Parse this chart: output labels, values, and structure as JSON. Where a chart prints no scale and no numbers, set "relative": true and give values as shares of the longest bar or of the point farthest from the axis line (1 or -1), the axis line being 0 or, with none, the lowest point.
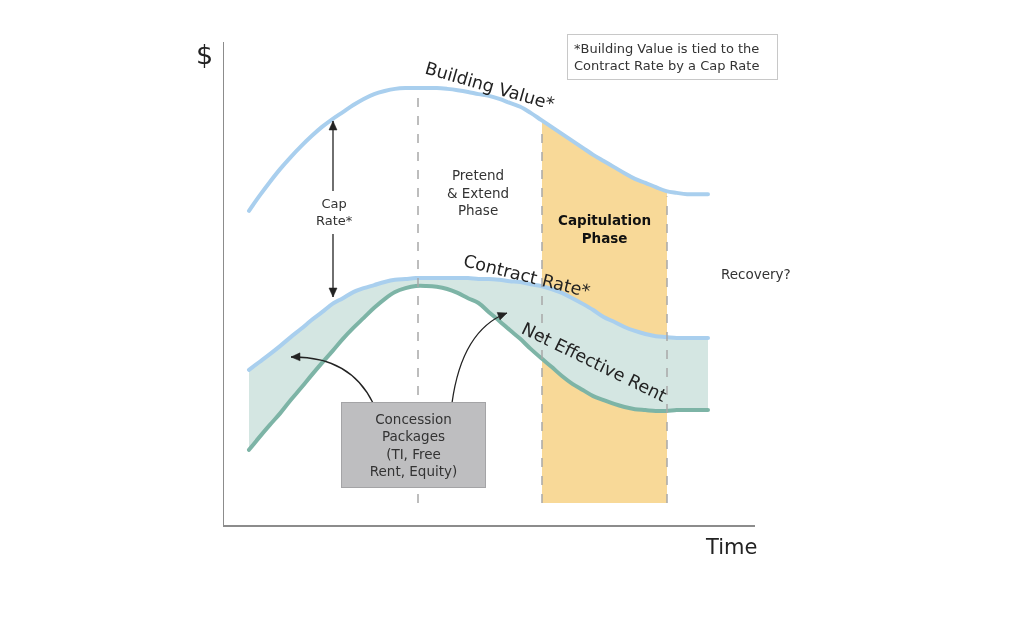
{
  "chart_data": {
    "type": "line",
    "relative": true,
    "xlabel": "Time",
    "ylabel": "$",
    "legend": false,
    "categories": [
      null,
      null,
      null,
      null,
      null,
      null,
      null,
      null,
      null,
      null,
      null,
      null,
      null,
      null,
      null,
      null,
      null,
      null,
      null,
      null,
      null,
      null,
      null,
      null,
      null,
      null,
      null,
      null,
      null,
      null,
      null,
      null,
      null,
      null,
      null,
      null,
      null,
      null,
      null,
      null,
      null,
      null,
      null,
      null,
      null
    ],
    "series": [
      {
        "name": "Building Value*",
        "color": "#a9cfee",
        "values": [
          0.719,
          0.753,
          0.785,
          0.815,
          0.842,
          0.867,
          0.89,
          0.911,
          0.929,
          0.945,
          0.961,
          0.975,
          0.986,
          0.993,
          0.998,
          1,
          1,
          1,
          1,
          0.998,
          0.995,
          0.991,
          0.986,
          0.982,
          0.975,
          0.966,
          0.957,
          0.943,
          0.927,
          0.911,
          0.895,
          0.879,
          0.863,
          0.847,
          0.833,
          0.819,
          0.805,
          0.792,
          0.783,
          0.773,
          0.764,
          0.76,
          0.757,
          0.757,
          0.757
        ]
      },
      {
        "name": "Contract Rate*",
        "color": "#a9cfee",
        "values": [
          0.355,
          0.373,
          0.391,
          0.41,
          0.43,
          0.449,
          0.469,
          0.487,
          0.506,
          0.519,
          0.533,
          0.542,
          0.549,
          0.556,
          0.561,
          0.563,
          0.565,
          0.565,
          0.565,
          0.565,
          0.565,
          0.565,
          0.563,
          0.563,
          0.561,
          0.558,
          0.556,
          0.551,
          0.547,
          0.54,
          0.531,
          0.519,
          0.506,
          0.492,
          0.476,
          0.465,
          0.453,
          0.444,
          0.437,
          0.432,
          0.43,
          0.428,
          0.428,
          0.428,
          0.428
        ]
      },
      {
        "name": "Net Effective Rent",
        "color": "#7db4a6",
        "values": [
          0.172,
          0.201,
          0.229,
          0.256,
          0.286,
          0.314,
          0.343,
          0.371,
          0.398,
          0.426,
          0.451,
          0.474,
          0.497,
          0.517,
          0.533,
          0.542,
          0.547,
          0.547,
          0.545,
          0.54,
          0.531,
          0.519,
          0.508,
          0.487,
          0.467,
          0.446,
          0.426,
          0.403,
          0.382,
          0.362,
          0.341,
          0.323,
          0.309,
          0.295,
          0.286,
          0.277,
          0.27,
          0.265,
          0.263,
          0.261,
          0.261,
          0.263,
          0.263,
          0.263,
          0.263
        ],
        "lower": [
          0.172,
          0.201,
          0.229,
          0.256,
          0.286,
          0.314,
          0.343,
          0.371,
          0.398,
          0.426,
          0.451,
          0.474,
          0.497,
          0.517,
          0.533,
          0.542,
          0.547,
          0.547,
          0.545,
          0.54,
          0.531,
          0.519,
          0.508,
          0.487,
          0.467,
          0.446,
          0.426,
          0.403,
          0.382,
          0.362,
          0.341,
          0.323,
          0.309,
          0.295,
          0.286,
          0.277,
          0.27,
          0.265,
          0.263,
          0.261,
          0.261,
          0.263,
          0.263,
          0.263,
          0.263
        ],
        "upper": [
          0.355,
          0.373,
          0.391,
          0.41,
          0.43,
          0.449,
          0.469,
          0.487,
          0.506,
          0.519,
          0.533,
          0.542,
          0.549,
          0.556,
          0.561,
          0.563,
          0.565,
          0.565,
          0.565,
          0.565,
          0.565,
          0.565,
          0.563,
          0.563,
          0.561,
          0.558,
          0.556,
          0.551,
          0.547,
          0.54,
          0.531,
          0.519,
          0.506,
          0.492,
          0.476,
          0.465,
          0.453,
          0.444,
          0.437,
          0.432,
          0.43,
          0.428,
          0.428,
          0.428,
          0.428
        ]
      }
    ],
    "annotations": [
      "*Building Value is tied to the Contract Rate by a Cap Rate",
      "Pretend & Extend Phase",
      "Cap Rate*",
      "Concession Packages (TI, Free Rent, Equity)",
      "Recovery?",
      "Capitulation Phase"
    ]
  }
}
